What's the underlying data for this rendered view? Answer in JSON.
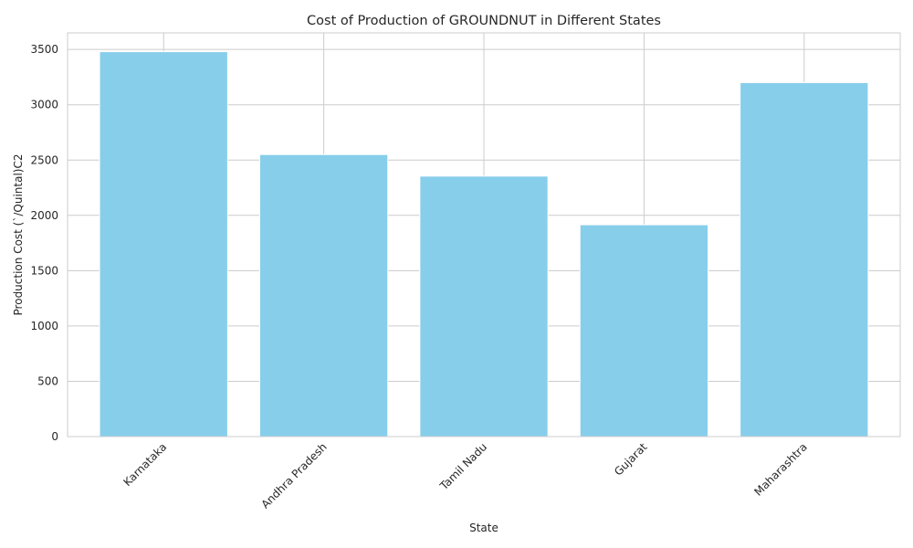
{
  "chart_data": {
    "type": "bar",
    "title": "Cost of Production of GROUNDNUT in Different States",
    "xlabel": "State",
    "ylabel": "Production Cost (`/Quintal)C2",
    "categories": [
      "Karnataka",
      "Andhra Pradesh",
      "Tamil Nadu",
      "Gujarat",
      "Maharashtra"
    ],
    "values": [
      3480,
      2550,
      2355,
      1915,
      3200
    ],
    "ylim": [
      0,
      3650
    ],
    "yticks": [
      0,
      500,
      1000,
      1500,
      2000,
      2500,
      3000,
      3500
    ],
    "bar_color": "#87ceeb",
    "grid": true,
    "legend": "none"
  }
}
